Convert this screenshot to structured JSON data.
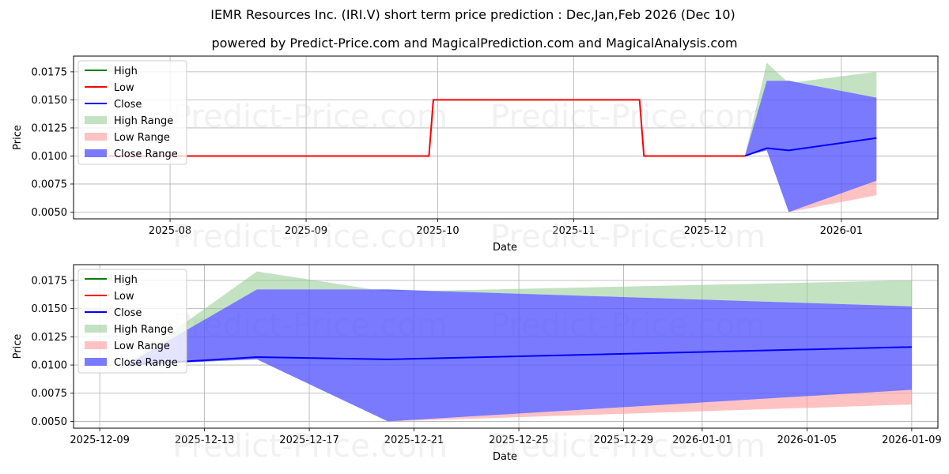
{
  "title": "IEMR Resources Inc. (IRI.V) short term price prediction : Dec,Jan,Feb 2026 (Dec 10)",
  "subtitle": "powered by Predict-Price.com and MagicalPrediction.com and MagicalAnalysis.com",
  "watermark": "Predict-Price.com",
  "colors": {
    "high": "#008000",
    "low": "#ff0000",
    "close": "#0000ff",
    "high_range": "#8fca8f",
    "low_range": "#ff9999",
    "close_range": "#5555ff",
    "grid": "#b0b0b0"
  },
  "legend": [
    {
      "label": "High",
      "type": "line",
      "key": "high"
    },
    {
      "label": "Low",
      "type": "line",
      "key": "low"
    },
    {
      "label": "Close",
      "type": "line",
      "key": "close"
    },
    {
      "label": "High Range",
      "type": "patch",
      "key": "high_range"
    },
    {
      "label": "Low Range",
      "type": "patch",
      "key": "low_range"
    },
    {
      "label": "Close Range",
      "type": "patch",
      "key": "close_range"
    }
  ],
  "chart_data": [
    {
      "type": "line",
      "title": "IEMR Resources Inc. (IRI.V) short term price prediction : Dec,Jan,Feb 2026 (Dec 10)",
      "xlabel": "Date",
      "ylabel": "Price",
      "ylim": [
        0.0044,
        0.0189
      ],
      "xlim": [
        "2025-07-10",
        "2026-01-23"
      ],
      "yticks": [
        "0.0050",
        "0.0075",
        "0.0100",
        "0.0125",
        "0.0150",
        "0.0175"
      ],
      "xticks": [
        "2025-08",
        "2025-09",
        "2025-10",
        "2025-11",
        "2025-12",
        "2026-01"
      ],
      "grid": true,
      "legend_position": "upper left",
      "history": {
        "name": "Low",
        "x": [
          "2025-07-18",
          "2025-09-29",
          "2025-09-30",
          "2025-11-16",
          "2025-11-17",
          "2025-12-10"
        ],
        "values": [
          0.01,
          0.01,
          0.015,
          0.015,
          0.01,
          0.01
        ]
      },
      "forecast": {
        "x": [
          "2025-12-10",
          "2025-12-15",
          "2025-12-20",
          "2026-01-09"
        ],
        "close": [
          0.01,
          0.0107,
          0.0105,
          0.0116
        ],
        "high_range_upper": [
          0.01,
          0.0183,
          0.0165,
          0.0175
        ],
        "close_range_upper": [
          0.01,
          0.0167,
          0.0167,
          0.0152
        ],
        "close_range_lower": [
          0.01,
          0.0105,
          0.005,
          0.0078
        ],
        "low_range_lower": [
          0.01,
          0.0105,
          0.005,
          0.0065
        ]
      }
    },
    {
      "type": "line",
      "title": "",
      "xlabel": "Date",
      "ylabel": "Price",
      "ylim": [
        0.0044,
        0.0189
      ],
      "xlim": [
        "2025-12-08",
        "2026-01-10"
      ],
      "yticks": [
        "0.0050",
        "0.0075",
        "0.0100",
        "0.0125",
        "0.0150",
        "0.0175"
      ],
      "xticks": [
        "2025-12-09",
        "2025-12-13",
        "2025-12-17",
        "2025-12-21",
        "2025-12-25",
        "2025-12-29",
        "2026-01-01",
        "2026-01-05",
        "2026-01-09"
      ],
      "grid": true,
      "legend_position": "upper left",
      "forecast": {
        "x": [
          "2025-12-10",
          "2025-12-15",
          "2025-12-20",
          "2026-01-09"
        ],
        "close": [
          0.01,
          0.0107,
          0.0105,
          0.0116
        ],
        "high_range_upper": [
          0.01,
          0.0183,
          0.0165,
          0.0175
        ],
        "close_range_upper": [
          0.01,
          0.0167,
          0.0167,
          0.0152
        ],
        "close_range_lower": [
          0.01,
          0.0105,
          0.005,
          0.0078
        ],
        "low_range_lower": [
          0.01,
          0.0105,
          0.005,
          0.0065
        ]
      }
    }
  ]
}
